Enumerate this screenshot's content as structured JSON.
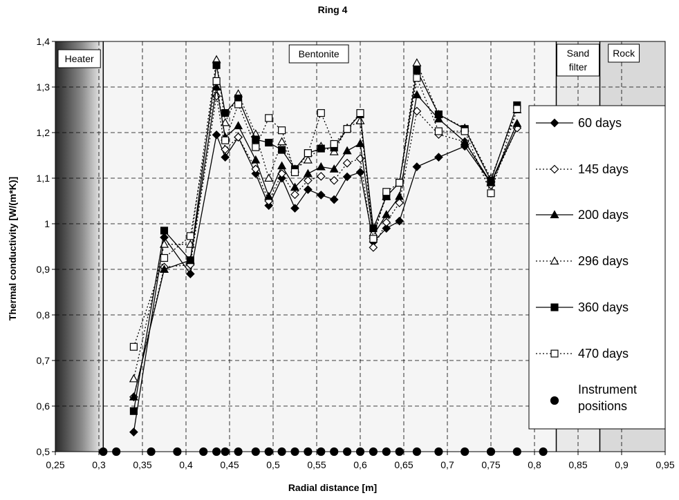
{
  "chart_data": {
    "type": "line",
    "title": "Ring 4",
    "xlabel": "Radial distance [m]",
    "ylabel": "Thermal conductivity [W/(m*K)]",
    "xlim": [
      0.25,
      0.95
    ],
    "ylim": [
      0.5,
      1.4
    ],
    "x_ticks": [
      "0,25",
      "0,3",
      "0,35",
      "0,4",
      "0,45",
      "0,5",
      "0,55",
      "0,6",
      "0,65",
      "0,7",
      "0,75",
      "0,8",
      "0,85",
      "0,9",
      "0,95"
    ],
    "y_ticks": [
      "0,5",
      "0,6",
      "0,7",
      "0,8",
      "0,9",
      "1",
      "1,1",
      "1,2",
      "1,3",
      "1,4"
    ],
    "grid": true,
    "legend_position": "right",
    "zones": [
      {
        "label": "Heater",
        "x_range": [
          0.25,
          0.305
        ],
        "fill": "gradient-dark"
      },
      {
        "label": "Bentonite",
        "x_range": [
          0.305,
          0.825
        ],
        "fill": "#f5f5f5"
      },
      {
        "label": "Sand filter",
        "x_range": [
          0.825,
          0.875
        ],
        "fill": "#e9e9e9"
      },
      {
        "label": "Rock",
        "x_range": [
          0.875,
          0.95
        ],
        "fill": "#d9d9d9"
      }
    ],
    "series": [
      {
        "name": "60  days",
        "marker": "diamond-filled",
        "line": "solid",
        "x": [
          0.34,
          0.375,
          0.405,
          0.435,
          0.445,
          0.46,
          0.48,
          0.495,
          0.51,
          0.525,
          0.54,
          0.555,
          0.57,
          0.585,
          0.6,
          0.615,
          0.63,
          0.645,
          0.665,
          0.69,
          0.72,
          0.75,
          0.78
        ],
        "y": [
          0.543,
          0.97,
          0.89,
          1.195,
          1.146,
          1.19,
          1.11,
          1.04,
          1.1,
          1.034,
          1.075,
          1.063,
          1.053,
          1.103,
          1.113,
          0.96,
          0.99,
          1.006,
          1.125,
          1.146,
          1.17,
          1.09,
          1.21
        ]
      },
      {
        "name": "145 days",
        "marker": "diamond-open",
        "line": "dotted",
        "x": [
          0.34,
          0.375,
          0.405,
          0.435,
          0.445,
          0.46,
          0.48,
          0.495,
          0.51,
          0.525,
          0.54,
          0.555,
          0.57,
          0.585,
          0.6,
          0.615,
          0.63,
          0.645,
          0.665,
          0.69,
          0.72,
          0.75,
          0.78
        ],
        "y": [
          0.62,
          0.905,
          0.91,
          1.28,
          1.163,
          1.19,
          1.12,
          1.05,
          1.11,
          1.064,
          1.095,
          1.104,
          1.095,
          1.133,
          1.143,
          0.948,
          1.003,
          1.046,
          1.247,
          1.196,
          1.18,
          1.085,
          1.21
        ]
      },
      {
        "name": "200 days",
        "marker": "triangle-filled",
        "line": "solid",
        "x": [
          0.34,
          0.375,
          0.405,
          0.435,
          0.445,
          0.46,
          0.48,
          0.495,
          0.51,
          0.525,
          0.54,
          0.555,
          0.57,
          0.585,
          0.6,
          0.615,
          0.63,
          0.645,
          0.665,
          0.69,
          0.72,
          0.75,
          0.78
        ],
        "y": [
          0.62,
          0.9,
          0.92,
          1.3,
          1.19,
          1.215,
          1.14,
          1.06,
          1.127,
          1.08,
          1.11,
          1.125,
          1.12,
          1.16,
          1.176,
          0.975,
          1.02,
          1.06,
          1.283,
          1.23,
          1.18,
          1.09,
          1.22
        ]
      },
      {
        "name": "296 days",
        "marker": "triangle-open",
        "line": "dotted",
        "x": [
          0.34,
          0.375,
          0.405,
          0.435,
          0.445,
          0.46,
          0.48,
          0.495,
          0.51,
          0.525,
          0.54,
          0.555,
          0.57,
          0.585,
          0.6,
          0.615,
          0.63,
          0.645,
          0.665,
          0.69,
          0.72,
          0.75,
          0.78
        ],
        "y": [
          0.66,
          0.955,
          0.955,
          1.36,
          1.222,
          1.285,
          1.197,
          1.1,
          1.18,
          1.12,
          1.14,
          1.17,
          1.158,
          1.21,
          1.226,
          0.98,
          1.06,
          1.09,
          1.353,
          1.24,
          1.21,
          1.1,
          1.25
        ]
      },
      {
        "name": "360 days",
        "marker": "square-filled",
        "line": "solid",
        "x": [
          0.34,
          0.375,
          0.405,
          0.435,
          0.445,
          0.46,
          0.48,
          0.495,
          0.51,
          0.525,
          0.54,
          0.555,
          0.57,
          0.585,
          0.6,
          0.615,
          0.63,
          0.645,
          0.665,
          0.69,
          0.72,
          0.75,
          0.78
        ],
        "y": [
          0.589,
          0.985,
          0.92,
          1.348,
          1.243,
          1.275,
          1.185,
          1.178,
          1.162,
          1.12,
          1.155,
          1.165,
          1.167,
          1.208,
          1.24,
          0.99,
          1.06,
          1.09,
          1.337,
          1.24,
          1.208,
          1.095,
          1.26
        ]
      },
      {
        "name": "470 days",
        "marker": "square-open",
        "line": "dotted",
        "x": [
          0.34,
          0.375,
          0.405,
          0.435,
          0.445,
          0.46,
          0.48,
          0.495,
          0.51,
          0.525,
          0.54,
          0.555,
          0.57,
          0.585,
          0.6,
          0.615,
          0.63,
          0.645,
          0.665,
          0.69,
          0.72,
          0.75,
          0.78
        ],
        "y": [
          0.73,
          0.925,
          0.973,
          1.313,
          1.183,
          1.262,
          1.168,
          1.232,
          1.205,
          1.113,
          1.155,
          1.243,
          1.175,
          1.208,
          1.243,
          0.967,
          1.07,
          1.09,
          1.32,
          1.203,
          1.203,
          1.067,
          1.252
        ]
      },
      {
        "name": "Instrument\npositions",
        "marker": "circle-filled",
        "line": "none",
        "x": [
          0.305,
          0.32,
          0.36,
          0.39,
          0.42,
          0.435,
          0.445,
          0.46,
          0.48,
          0.495,
          0.51,
          0.525,
          0.54,
          0.555,
          0.57,
          0.585,
          0.6,
          0.615,
          0.63,
          0.645,
          0.665,
          0.69,
          0.72,
          0.75,
          0.78,
          0.81
        ],
        "y": [
          0.5,
          0.5,
          0.5,
          0.5,
          0.5,
          0.5,
          0.5,
          0.5,
          0.5,
          0.5,
          0.5,
          0.5,
          0.5,
          0.5,
          0.5,
          0.5,
          0.5,
          0.5,
          0.5,
          0.5,
          0.5,
          0.5,
          0.5,
          0.5,
          0.5,
          0.5
        ]
      }
    ]
  }
}
